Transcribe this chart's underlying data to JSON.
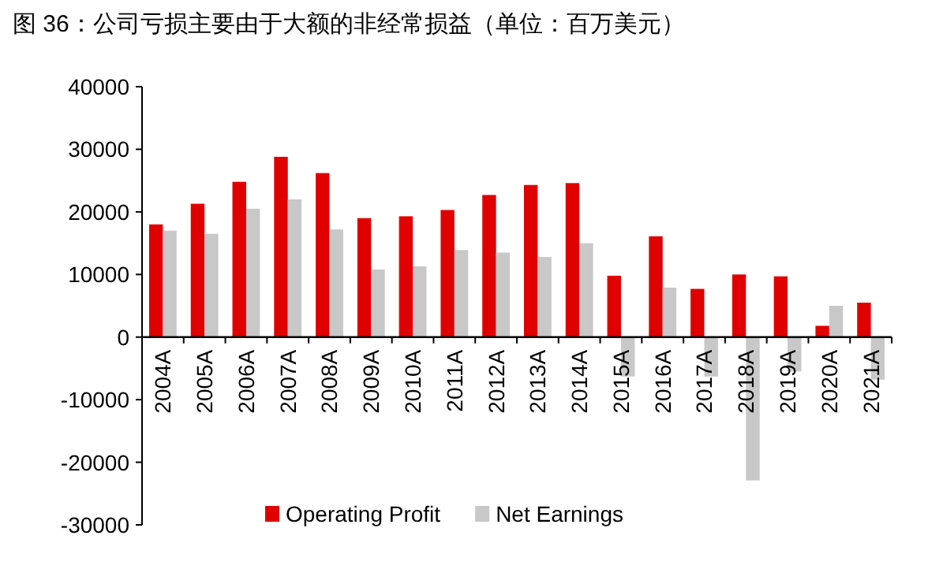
{
  "chart_data": {
    "type": "bar",
    "title": "图 36：公司亏损主要由于大额的非经常损益（单位：百万美元）",
    "categories": [
      "2004A",
      "2005A",
      "2006A",
      "2007A",
      "2008A",
      "2009A",
      "2010A",
      "2011A",
      "2012A",
      "2013A",
      "2014A",
      "2015A",
      "2016A",
      "2017A",
      "2018A",
      "2019A",
      "2020A",
      "2021A"
    ],
    "series": [
      {
        "name": "Operating Profit",
        "color": "#e00000",
        "values": [
          18000,
          21300,
          24800,
          28800,
          26200,
          19000,
          19300,
          20300,
          22700,
          24300,
          24600,
          9800,
          16100,
          7700,
          10000,
          9700,
          1800,
          5500
        ]
      },
      {
        "name": "Net Earnings",
        "color": "#c8c8c8",
        "values": [
          17000,
          16500,
          20500,
          22000,
          17200,
          10800,
          11300,
          13900,
          13500,
          12800,
          15000,
          -6300,
          7900,
          -6300,
          -22900,
          -5500,
          5000,
          -6800
        ]
      }
    ],
    "ylim": [
      -30000,
      40000
    ],
    "yticks": [
      -30000,
      -20000,
      -10000,
      0,
      10000,
      20000,
      30000,
      40000
    ],
    "grid": false,
    "legend": "bottom"
  }
}
